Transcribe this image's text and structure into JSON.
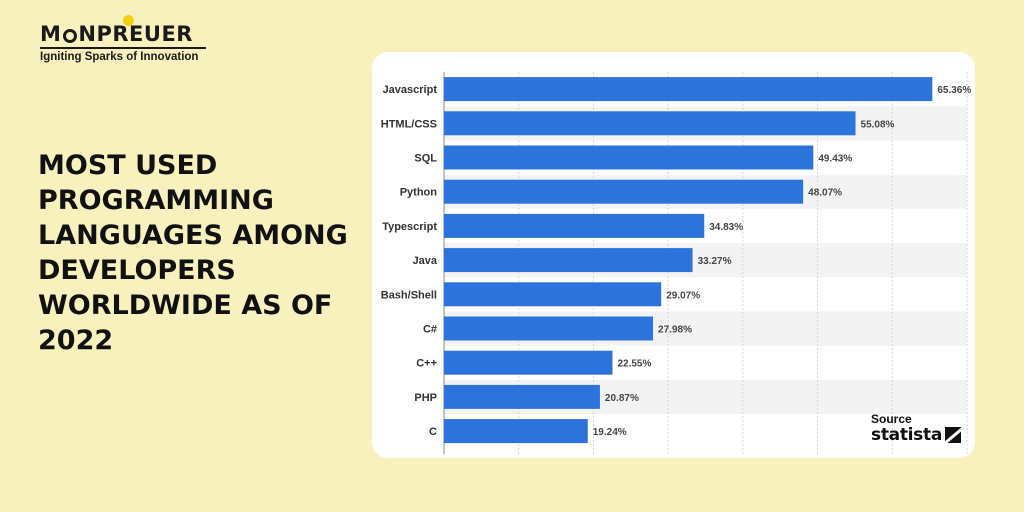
{
  "brand": {
    "name_before": "M",
    "name_after": "NPREUER",
    "tagline": "Igniting Sparks of Innovation"
  },
  "headline": "MOST USED PROGRAMMING LANGUAGES AMONG DEVELOPERS WORLDWIDE AS OF 2022",
  "source": {
    "label": "Source",
    "brand": "statista",
    "icon": "statista-logo-icon"
  },
  "colors": {
    "background": "#f8f1bd",
    "bar": "#2d73dc",
    "accent": "#f5cf10"
  },
  "chart_data": {
    "type": "bar",
    "orientation": "horizontal",
    "categories": [
      "Javascript",
      "HTML/CSS",
      "SQL",
      "Python",
      "Typescript",
      "Java",
      "Bash/Shell",
      "C#",
      "C++",
      "PHP",
      "C"
    ],
    "values": [
      65.36,
      55.08,
      49.43,
      48.07,
      34.83,
      33.27,
      29.07,
      27.98,
      22.55,
      20.87,
      19.24
    ],
    "value_labels": [
      "65.36%",
      "55.08%",
      "49.43%",
      "48.07%",
      "34.83%",
      "33.27%",
      "29.07%",
      "27.98%",
      "22.55%",
      "20.87%",
      "19.24%"
    ],
    "unit": "%",
    "xlim": [
      0,
      70
    ],
    "grid": true,
    "legend": false,
    "title": "",
    "xlabel": "",
    "ylabel": ""
  }
}
